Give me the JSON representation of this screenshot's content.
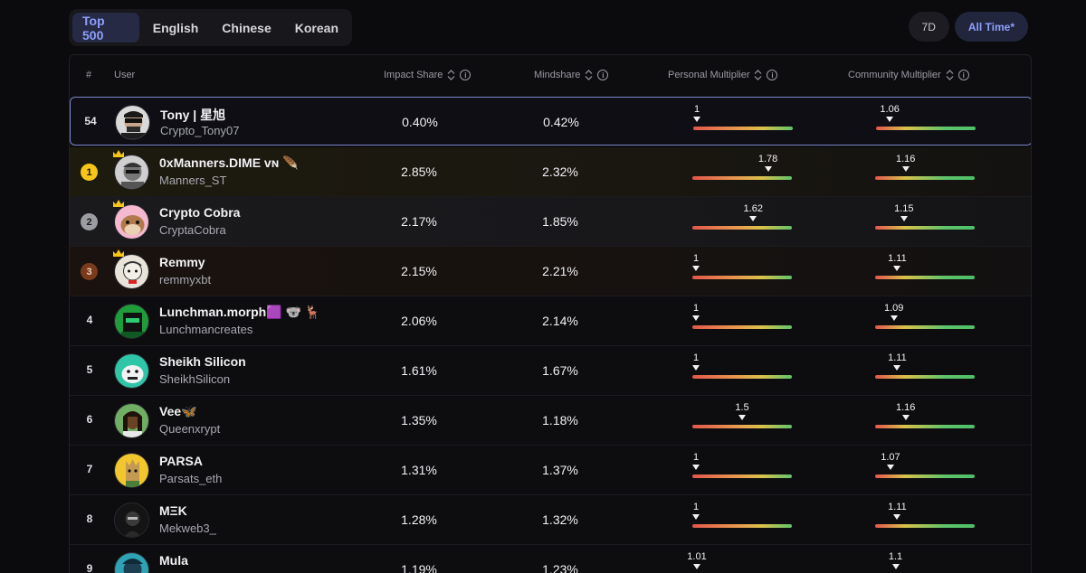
{
  "tabs": [
    {
      "label": "Top 500",
      "active": true
    },
    {
      "label": "English",
      "active": false
    },
    {
      "label": "Chinese",
      "active": false
    },
    {
      "label": "Korean",
      "active": false
    }
  ],
  "time_filters": [
    {
      "label": "7D",
      "active": false
    },
    {
      "label": "All Time*",
      "active": true
    }
  ],
  "columns": {
    "rank": "#",
    "user": "User",
    "impact": "Impact Share",
    "mindshare": "Mindshare",
    "personal": "Personal Multiplier",
    "community": "Community Multiplier"
  },
  "current_user": {
    "rank": "54",
    "name": "Tony | 星旭",
    "handle": "Crypto_Tony07",
    "impact": "0.40%",
    "mindshare": "0.42%",
    "personal": "1",
    "personal_level": 0.0,
    "community": "1.06",
    "community_level": 0.06
  },
  "rows": [
    {
      "rank": "1",
      "name": "0xManners.DIME ᴠɴ 🪶",
      "handle": "Manners_ST",
      "impact": "2.85%",
      "mindshare": "2.32%",
      "personal": "1.78",
      "personal_level": 0.78,
      "community": "1.16",
      "community_level": 0.16
    },
    {
      "rank": "2",
      "name": "Crypto Cobra",
      "handle": "CryptaCobra",
      "impact": "2.17%",
      "mindshare": "1.85%",
      "personal": "1.62",
      "personal_level": 0.62,
      "community": "1.15",
      "community_level": 0.15
    },
    {
      "rank": "3",
      "name": "Remmy",
      "handle": "remmyxbt",
      "impact": "2.15%",
      "mindshare": "2.21%",
      "personal": "1",
      "personal_level": 0.0,
      "community": "1.11",
      "community_level": 0.11
    },
    {
      "rank": "4",
      "name": "Lunchman.morph🟪 🐨 🦌",
      "handle": "Lunchmancreates",
      "impact": "2.06%",
      "mindshare": "2.14%",
      "personal": "1",
      "personal_level": 0.0,
      "community": "1.09",
      "community_level": 0.09
    },
    {
      "rank": "5",
      "name": "Sheikh Silicon",
      "handle": "SheikhSilicon",
      "impact": "1.61%",
      "mindshare": "1.67%",
      "personal": "1",
      "personal_level": 0.0,
      "community": "1.11",
      "community_level": 0.11
    },
    {
      "rank": "6",
      "name": "Vee🦋",
      "handle": "Queenxrypt",
      "impact": "1.35%",
      "mindshare": "1.18%",
      "personal": "1.5",
      "personal_level": 0.5,
      "community": "1.16",
      "community_level": 0.16
    },
    {
      "rank": "7",
      "name": "PARSA",
      "handle": "Parsats_eth",
      "impact": "1.31%",
      "mindshare": "1.37%",
      "personal": "1",
      "personal_level": 0.0,
      "community": "1.07",
      "community_level": 0.07
    },
    {
      "rank": "8",
      "name": "MΞK",
      "handle": "Mekweb3_",
      "impact": "1.28%",
      "mindshare": "1.32%",
      "personal": "1",
      "personal_level": 0.0,
      "community": "1.11",
      "community_level": 0.11
    },
    {
      "rank": "9",
      "name": "Mula",
      "handle": "",
      "impact": "1.19%",
      "mindshare": "1.23%",
      "personal": "1.01",
      "personal_level": 0.01,
      "community": "1.1",
      "community_level": 0.1
    }
  ],
  "colors": {
    "accent": "#8ea0ff",
    "gold": "#f5c518",
    "silver": "#9c9ca3",
    "bronze": "#7a3a1c"
  }
}
